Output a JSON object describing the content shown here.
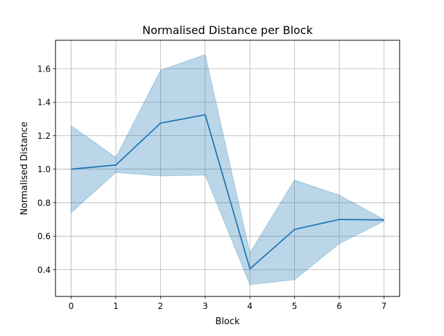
{
  "chart_data": {
    "type": "line",
    "title": "Normalised Distance per Block",
    "xlabel": "Block",
    "ylabel": "Normalised Distance",
    "x": [
      0,
      1,
      2,
      3,
      4,
      5,
      6,
      7
    ],
    "xlim": [
      -0.35,
      7.35
    ],
    "ylim": [
      0.24,
      1.77
    ],
    "xticks": [
      "0",
      "1",
      "2",
      "3",
      "4",
      "5",
      "6",
      "7"
    ],
    "yticks": [
      "0.4",
      "0.6",
      "0.8",
      "1.0",
      "1.2",
      "1.4",
      "1.6"
    ],
    "grid": true,
    "series": [
      {
        "values": [
          1.0,
          1.025,
          1.275,
          1.325,
          0.405,
          0.64,
          0.7,
          0.697
        ],
        "band_upper": [
          1.26,
          1.07,
          1.59,
          1.685,
          0.5,
          0.935,
          0.845,
          0.7
        ],
        "band_lower": [
          0.74,
          0.98,
          0.96,
          0.965,
          0.31,
          0.34,
          0.555,
          0.69
        ],
        "color": "#1f77b4",
        "band_color": "#1f77b4"
      }
    ]
  }
}
